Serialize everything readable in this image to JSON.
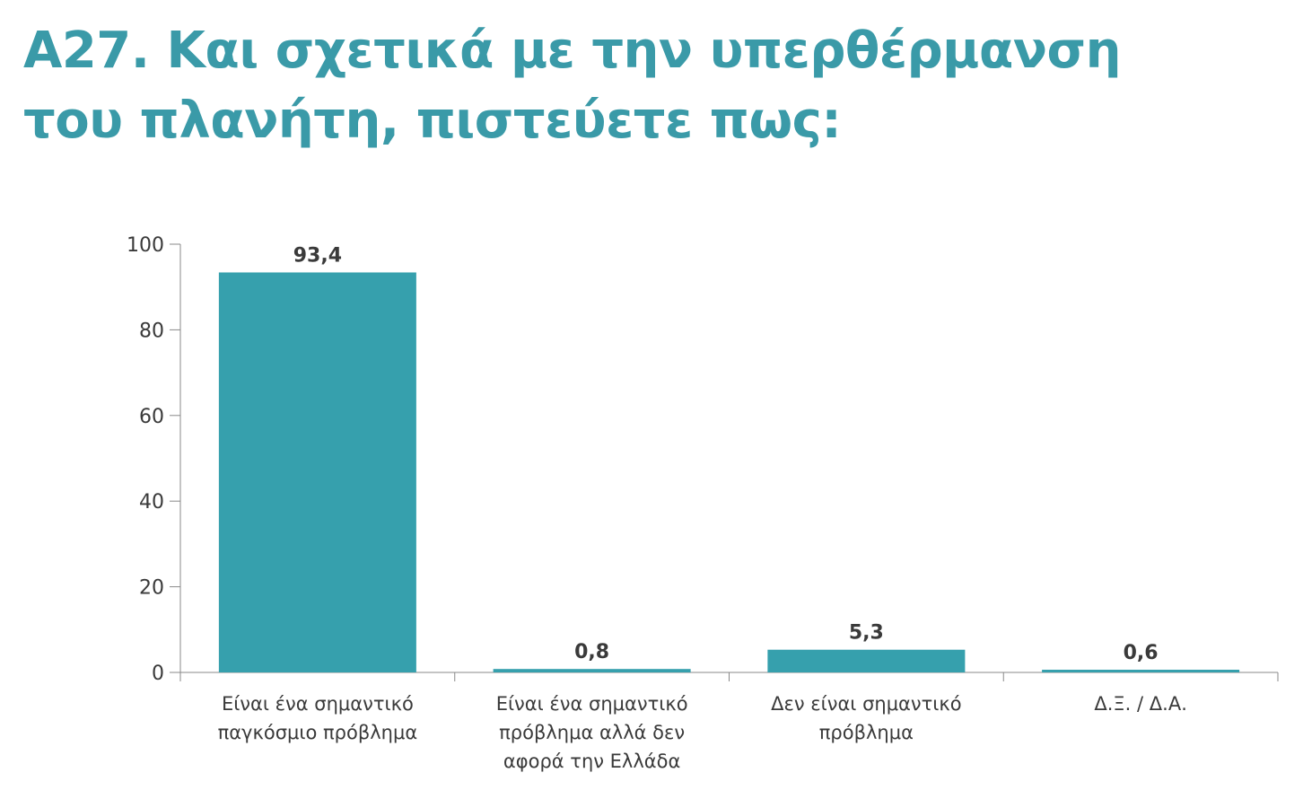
{
  "title_lines": [
    "Α27. Και σχετικά με την υπερθέρμανση",
    "του πλανήτη, πιστεύετε πως:"
  ],
  "colors": {
    "title": "#3a9aa8",
    "bar": "#36a0ad",
    "axis": "#888888",
    "text": "#3a3a3a"
  },
  "chart_data": {
    "type": "bar",
    "title": "Α27. Και σχετικά με την υπερθέρμανση του πλανήτη, πιστεύετε πως:",
    "categories": [
      [
        "Είναι ένα σημαντικό",
        "παγκόσμιο πρόβλημα"
      ],
      [
        "Είναι ένα σημαντικό",
        "πρόβλημα αλλά δεν",
        "αφορά την Ελλάδα"
      ],
      [
        "Δεν είναι σημαντικό",
        "πρόβλημα"
      ],
      [
        "Δ.Ξ. / Δ.Α."
      ]
    ],
    "values": [
      93.4,
      0.8,
      5.3,
      0.6
    ],
    "value_labels": [
      "93,4",
      "0,8",
      "5,3",
      "0,6"
    ],
    "ylim": [
      0,
      100
    ],
    "yticks": [
      0,
      20,
      40,
      60,
      80,
      100
    ],
    "xlabel": "",
    "ylabel": "",
    "grid": false,
    "legend": "none"
  }
}
